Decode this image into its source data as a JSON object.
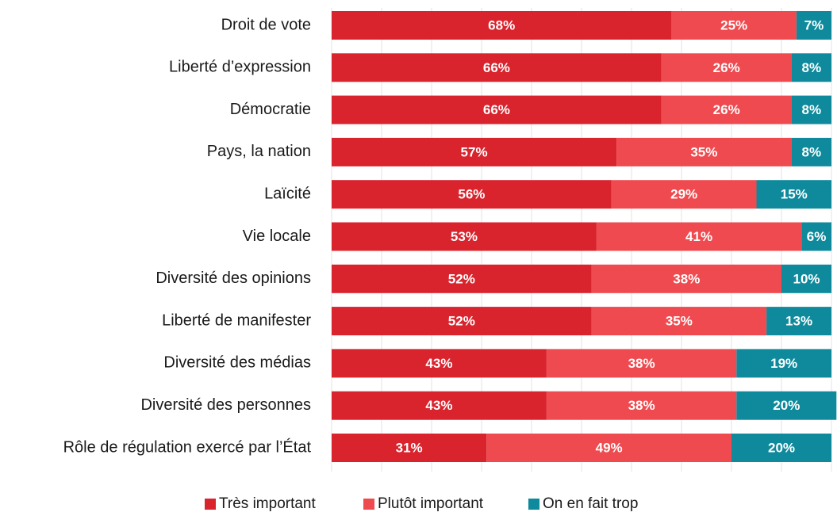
{
  "chart_data": {
    "type": "stacked_bar_horizontal",
    "categories": [
      "Droit de vote",
      "Liberté d’expression",
      "Démocratie",
      "Pays, la nation",
      "Laïcité",
      "Vie locale",
      "Diversité des opinions",
      "Liberté de manifester",
      "Diversité des médias",
      "Diversité des personnes",
      "Rôle de régulation exercé par l’État"
    ],
    "series": [
      {
        "name": "Très important",
        "color": "#d9232d",
        "values": [
          68,
          66,
          66,
          57,
          56,
          53,
          52,
          52,
          43,
          43,
          31
        ],
        "value_labels": [
          "68%",
          "66%",
          "66%",
          "57%",
          "56%",
          "53%",
          "52%",
          "52%",
          "43%",
          "43%",
          "31%"
        ]
      },
      {
        "name": "Plutôt important",
        "color": "#ee4a4f",
        "values": [
          25,
          26,
          26,
          35,
          29,
          41,
          38,
          35,
          38,
          38,
          49
        ],
        "value_labels": [
          "25%",
          "26%",
          "26%",
          "35%",
          "29%",
          "41%",
          "38%",
          "35%",
          "38%",
          "38%",
          "49%"
        ]
      },
      {
        "name": "On en fait trop",
        "color": "#0e8a9c",
        "values": [
          7,
          8,
          8,
          8,
          15,
          6,
          10,
          13,
          19,
          20,
          20
        ],
        "value_labels": [
          "7%",
          "8%",
          "8%",
          "8%",
          "15%",
          "6%",
          "10%",
          "13%",
          "19%",
          "20%",
          "20%"
        ]
      }
    ],
    "xlim": [
      0,
      100
    ],
    "xticks": [
      0,
      10,
      20,
      30,
      40,
      50,
      60,
      70,
      80,
      90,
      100
    ],
    "grid": true,
    "legend": "bottom"
  }
}
